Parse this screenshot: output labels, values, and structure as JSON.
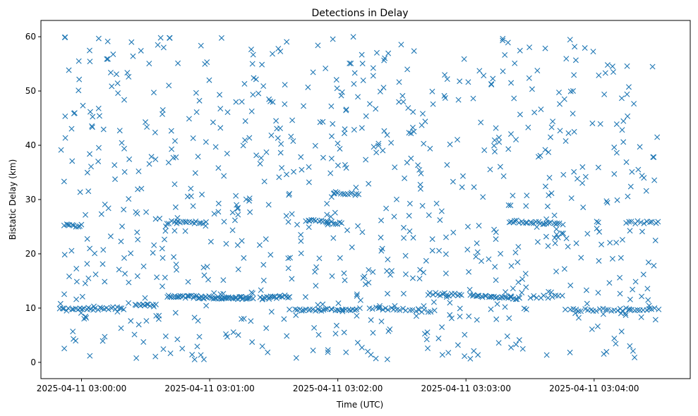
{
  "chart_data": {
    "type": "scatter",
    "title": "Detections in Delay",
    "xlabel": "Time (UTC)",
    "ylabel": "Bistatic Delay (km)",
    "marker": "x",
    "color": "#1f77b4",
    "x_unit": "seconds after 2025-04-11 03:00:00 UTC",
    "xlim": [
      -19,
      285
    ],
    "ylim": [
      -3,
      63
    ],
    "x_ticks": [
      {
        "value": 0,
        "label": "2025-04-11 03:00:00"
      },
      {
        "value": 60,
        "label": "2025-04-11 03:01:00"
      },
      {
        "value": 120,
        "label": "2025-04-11 03:02:00"
      },
      {
        "value": 180,
        "label": "2025-04-11 03:03:00"
      },
      {
        "value": 240,
        "label": "2025-04-11 03:04:00"
      }
    ],
    "y_ticks": [
      0,
      10,
      20,
      30,
      40,
      50,
      60
    ],
    "time_range_s": [
      -10,
      270
    ],
    "delay_range_km": [
      0.5,
      60
    ],
    "series": [
      {
        "name": "Detections",
        "tracks": [
          {
            "t_start": -10,
            "t_end": 20,
            "delay_start": 9.7,
            "delay_end": 10.0,
            "count": 30
          },
          {
            "t_start": 25,
            "t_end": 35,
            "delay_start": 10.5,
            "delay_end": 10.5,
            "count": 12
          },
          {
            "t_start": 40,
            "t_end": 55,
            "delay_start": 12.2,
            "delay_end": 12.0,
            "count": 22
          },
          {
            "t_start": 55,
            "t_end": 80,
            "delay_start": 12.0,
            "delay_end": 11.8,
            "count": 38
          },
          {
            "t_start": 84,
            "t_end": 97,
            "delay_start": 11.8,
            "delay_end": 12.2,
            "count": 20
          },
          {
            "t_start": 100,
            "t_end": 130,
            "delay_start": 9.6,
            "delay_end": 9.8,
            "count": 30
          },
          {
            "t_start": 135,
            "t_end": 165,
            "delay_start": 10.0,
            "delay_end": 9.4,
            "count": 22
          },
          {
            "t_start": 165,
            "t_end": 178,
            "delay_start": 12.6,
            "delay_end": 12.4,
            "count": 14
          },
          {
            "t_start": 182,
            "t_end": 205,
            "delay_start": 12.4,
            "delay_end": 11.8,
            "count": 28
          },
          {
            "t_start": 210,
            "t_end": 225,
            "delay_start": 12.0,
            "delay_end": 12.2,
            "count": 10
          },
          {
            "t_start": 230,
            "t_end": 270,
            "delay_start": 9.6,
            "delay_end": 9.8,
            "count": 30
          },
          {
            "t_start": -8,
            "t_end": 0,
            "delay_start": 25.2,
            "delay_end": 25.2,
            "count": 10
          },
          {
            "t_start": 40,
            "t_end": 58,
            "delay_start": 25.8,
            "delay_end": 25.8,
            "count": 18
          },
          {
            "t_start": 105,
            "t_end": 122,
            "delay_start": 26.2,
            "delay_end": 25.6,
            "count": 18
          },
          {
            "t_start": 118,
            "t_end": 130,
            "delay_start": 31.2,
            "delay_end": 31.0,
            "count": 12
          },
          {
            "t_start": 200,
            "t_end": 225,
            "delay_start": 26.0,
            "delay_end": 25.5,
            "count": 26
          },
          {
            "t_start": 255,
            "t_end": 270,
            "delay_start": 25.8,
            "delay_end": 25.8,
            "count": 12
          }
        ],
        "scatter_points_approx": 800,
        "scatter_seed": 7
      }
    ]
  }
}
